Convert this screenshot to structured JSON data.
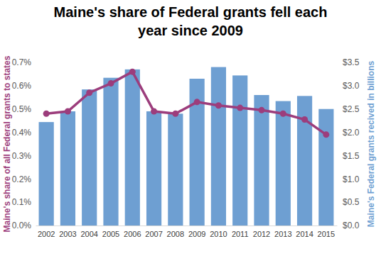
{
  "chart_data": {
    "type": "bar",
    "title": "Maine's share of Federal grants fell each year since 2009",
    "y_label": "Maine's share of all Federal grants to states",
    "y2_label": "Maine's Federal grants recived in billions",
    "categories": [
      "2002",
      "2003",
      "2004",
      "2005",
      "2006",
      "2007",
      "2008",
      "2009",
      "2010",
      "2011",
      "2012",
      "2013",
      "2014",
      "2015"
    ],
    "series": [
      {
        "type": "bar",
        "axis": "y2",
        "color": "#6e9fd2",
        "values": [
          2.22,
          2.45,
          2.92,
          3.17,
          3.35,
          2.45,
          2.4,
          3.15,
          3.4,
          3.22,
          2.8,
          2.67,
          2.78,
          2.5
        ]
      },
      {
        "type": "line",
        "color": "#9c3d7c",
        "marker": "circle",
        "line_style": "solid",
        "values": [
          0.48,
          0.49,
          0.57,
          0.61,
          0.66,
          0.49,
          0.48,
          0.53,
          0.515,
          0.505,
          0.495,
          0.48,
          0.455,
          0.39
        ]
      }
    ],
    "ylim": [
      0,
      0.7
    ],
    "yticks": [
      {
        "value": 0,
        "label": "0.0%"
      },
      {
        "value": 0.1,
        "label": "0.1%"
      },
      {
        "value": 0.2,
        "label": "0.2%"
      },
      {
        "value": 0.3,
        "label": "0.3%"
      },
      {
        "value": 0.4,
        "label": "0.4%"
      },
      {
        "value": 0.5,
        "label": "0.5%"
      },
      {
        "value": 0.6,
        "label": "0.6%"
      },
      {
        "value": 0.7,
        "label": "0.7%"
      }
    ],
    "y2lim": [
      0,
      3.5
    ],
    "y2ticks": [
      {
        "value": 0,
        "label": "$0.0"
      },
      {
        "value": 0.5,
        "label": "$0.5"
      },
      {
        "value": 1,
        "label": "$1.0"
      },
      {
        "value": 1.5,
        "label": "$1.5"
      },
      {
        "value": 2,
        "label": "$2.0"
      },
      {
        "value": 2.5,
        "label": "$2.5"
      },
      {
        "value": 3,
        "label": "$3.0"
      },
      {
        "value": 3.5,
        "label": "$3.5"
      }
    ],
    "grid": false
  }
}
